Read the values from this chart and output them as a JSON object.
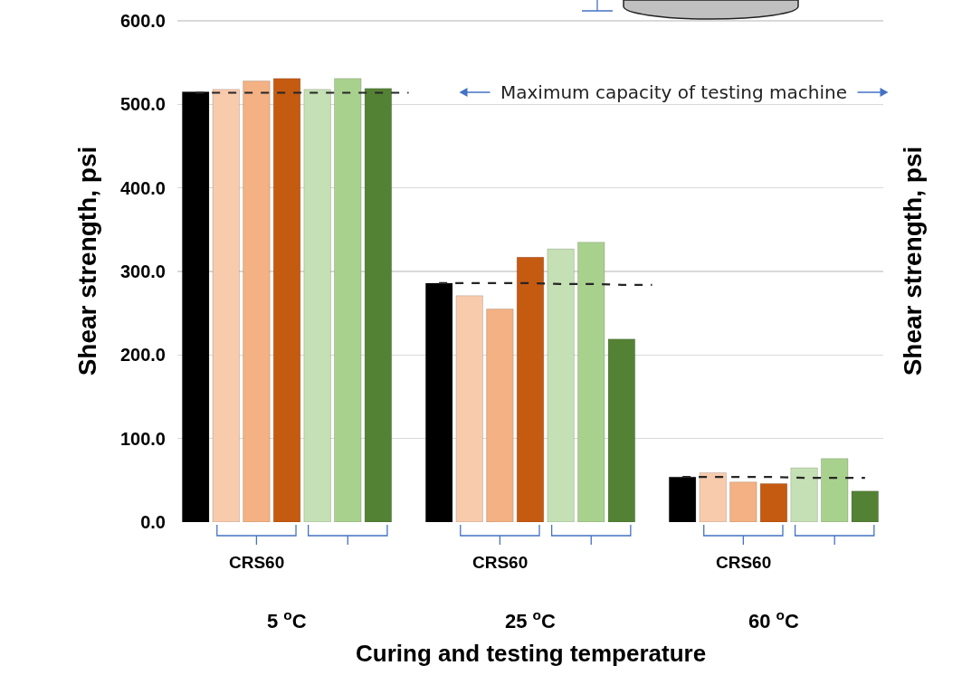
{
  "chart_data": {
    "type": "bar",
    "xlabel": "Curing and testing temperature",
    "ylabel": "Shear strength, psi",
    "y2label": "Shear strength, psi",
    "categories": [
      null,
      null,
      null,
      null,
      null,
      null,
      null,
      null,
      null,
      null,
      null,
      null,
      null,
      null,
      null,
      null,
      null,
      null,
      null,
      null,
      null,
      null,
      null
    ],
    "series": [
      {
        "values": [
          515,
          518,
          528,
          531,
          518,
          531,
          519,
          null,
          286,
          271,
          255,
          317,
          327,
          335,
          219,
          null,
          54,
          59,
          48,
          46,
          65,
          76,
          37
        ],
        "colors": [
          "#000000",
          "#f8cbad",
          "#f4b183",
          "#c55a11",
          "#c5e0b4",
          "#a9d18e",
          "#548235",
          null,
          "#000000",
          "#f8cbad",
          "#f4b183",
          "#c55a11",
          "#c5e0b4",
          "#a9d18e",
          "#548235",
          null,
          "#000000",
          "#f8cbad",
          "#f4b183",
          "#c55a11",
          "#c5e0b4",
          "#a9d18e",
          "#548235"
        ]
      },
      {
        "type": "line",
        "color": "#262626",
        "line_style": "dashed",
        "marker": "none",
        "values": [
          514,
          514,
          514,
          514,
          514,
          514,
          514,
          514,
          null,
          null,
          null,
          null,
          null,
          null,
          null,
          null,
          null,
          null,
          null,
          null,
          null,
          null,
          null
        ]
      },
      {
        "type": "line",
        "color": "#262626",
        "line_style": "dashed",
        "marker": "none",
        "values": [
          null,
          null,
          null,
          null,
          null,
          null,
          null,
          null,
          286,
          286,
          286,
          286,
          285,
          285,
          284,
          284,
          null,
          null,
          null,
          null,
          null,
          null,
          null
        ]
      },
      {
        "type": "line",
        "color": "#262626",
        "line_style": "dashed",
        "marker": "none",
        "values": [
          null,
          null,
          null,
          null,
          null,
          null,
          null,
          null,
          null,
          null,
          null,
          null,
          null,
          null,
          null,
          null,
          54,
          54,
          54,
          54,
          53,
          53,
          53
        ]
      }
    ],
    "ylim": [
      0,
      625
    ],
    "yticks": [
      {
        "value": 0,
        "label": "0.0"
      },
      {
        "value": 100,
        "label": "100.0"
      },
      {
        "value": 200,
        "label": "200.0"
      },
      {
        "value": 300,
        "label": "300.0"
      },
      {
        "value": 400,
        "label": "400.0"
      },
      {
        "value": 500,
        "label": "500.0"
      },
      {
        "value": 600,
        "label": "600.0"
      }
    ],
    "grid": "y",
    "annotations": [
      "Maximum capacity of testing machine",
      "CRS60",
      "5 $^{o}$C",
      "CRS60",
      "25 $^{o}$C",
      "CRS60",
      "60 $^{o}$C"
    ]
  }
}
